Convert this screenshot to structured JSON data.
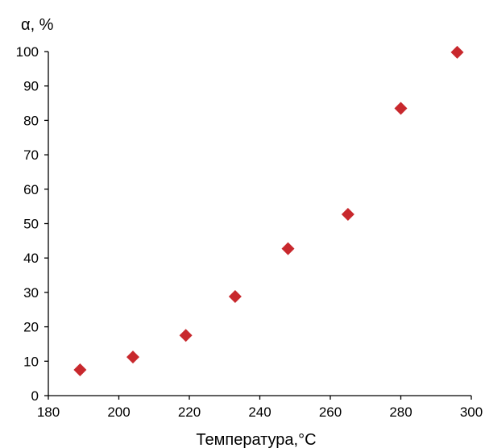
{
  "chart_data": {
    "type": "scatter",
    "title": "",
    "xlabel": "Температура,°С",
    "ylabel": "α, %",
    "xlim": [
      180,
      300
    ],
    "ylim": [
      0,
      100
    ],
    "x_ticks": [
      180,
      200,
      220,
      240,
      260,
      280,
      300
    ],
    "y_ticks": [
      0,
      10,
      20,
      30,
      40,
      50,
      60,
      70,
      80,
      90,
      100
    ],
    "grid": false,
    "legend": "none",
    "marker": "diamond",
    "marker_color": "#c8282d",
    "series": [
      {
        "points": [
          {
            "x": 189,
            "y": 7.5
          },
          {
            "x": 204,
            "y": 11.2
          },
          {
            "x": 219,
            "y": 17.5
          },
          {
            "x": 233,
            "y": 28.8
          },
          {
            "x": 248,
            "y": 42.7
          },
          {
            "x": 265,
            "y": 52.7
          },
          {
            "x": 280,
            "y": 83.5
          },
          {
            "x": 296,
            "y": 99.8
          }
        ]
      }
    ]
  }
}
